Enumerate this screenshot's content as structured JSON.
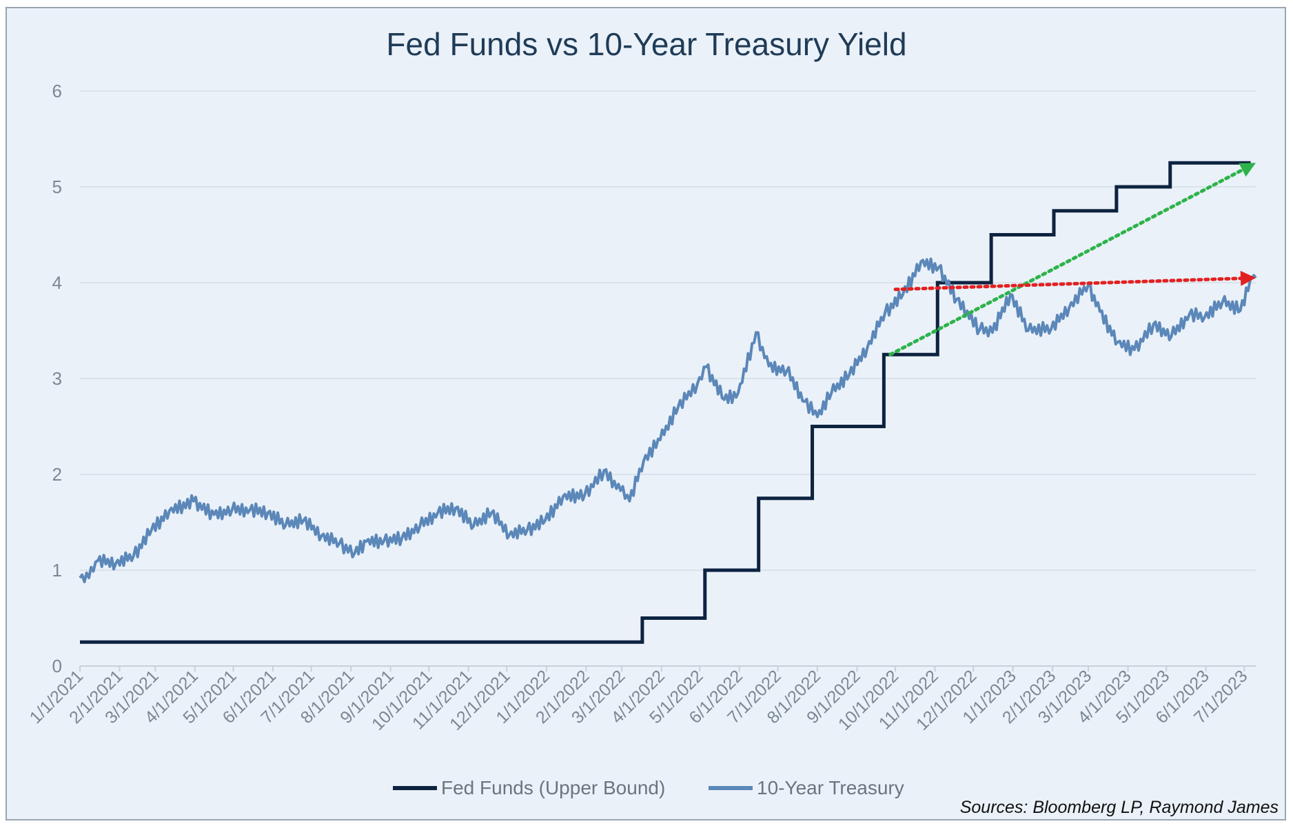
{
  "chart_data": {
    "type": "line",
    "title": "Fed Funds vs 10-Year Treasury Yield",
    "xlabel": "",
    "ylabel": "",
    "ylim": [
      0,
      6
    ],
    "yticks": [
      "0",
      "1",
      "2",
      "3",
      "4",
      "5",
      "6"
    ],
    "xticks": [
      "1/1/2021",
      "2/1/2021",
      "3/1/2021",
      "4/1/2021",
      "5/1/2021",
      "6/1/2021",
      "7/1/2021",
      "8/1/2021",
      "9/1/2021",
      "10/1/2021",
      "11/1/2021",
      "12/1/2021",
      "1/1/2022",
      "2/1/2022",
      "3/1/2022",
      "4/1/2022",
      "5/1/2022",
      "6/1/2022",
      "7/1/2022",
      "8/1/2022",
      "9/1/2022",
      "10/1/2022",
      "11/1/2022",
      "12/1/2022",
      "1/1/2023",
      "2/1/2023",
      "3/1/2023",
      "4/1/2023",
      "5/1/2023",
      "6/1/2023",
      "7/1/2023"
    ],
    "grid": true,
    "legend_position": "bottom",
    "series": [
      {
        "name": "Fed Funds (Upper Bound)",
        "color": "#0e2340",
        "style": "step",
        "x": [
          "2021-01-01",
          "2022-03-17",
          "2022-05-05",
          "2022-06-16",
          "2022-07-28",
          "2022-09-22",
          "2022-11-03",
          "2022-12-15",
          "2023-02-02",
          "2023-03-23",
          "2023-05-04",
          "2023-07-06"
        ],
        "values": [
          0.25,
          0.5,
          1.0,
          1.75,
          2.5,
          3.25,
          4.0,
          4.5,
          4.75,
          5.0,
          5.25,
          5.25
        ]
      },
      {
        "name": "10-Year Treasury",
        "color": "#5b87b9",
        "style": "line",
        "x": [
          "2021-01-01",
          "2021-01-08",
          "2021-01-15",
          "2021-01-29",
          "2021-02-12",
          "2021-02-26",
          "2021-03-12",
          "2021-03-31",
          "2021-04-16",
          "2021-04-30",
          "2021-05-14",
          "2021-05-28",
          "2021-06-11",
          "2021-06-25",
          "2021-07-09",
          "2021-07-23",
          "2021-08-04",
          "2021-08-13",
          "2021-08-27",
          "2021-09-10",
          "2021-09-24",
          "2021-10-08",
          "2021-10-22",
          "2021-11-05",
          "2021-11-19",
          "2021-12-03",
          "2021-12-17",
          "2021-12-31",
          "2022-01-14",
          "2022-01-31",
          "2022-02-15",
          "2022-02-28",
          "2022-03-07",
          "2022-03-18",
          "2022-03-31",
          "2022-04-14",
          "2022-04-29",
          "2022-05-06",
          "2022-05-20",
          "2022-05-31",
          "2022-06-14",
          "2022-06-24",
          "2022-07-08",
          "2022-07-22",
          "2022-08-01",
          "2022-08-12",
          "2022-08-26",
          "2022-09-09",
          "2022-09-23",
          "2022-10-07",
          "2022-10-21",
          "2022-11-04",
          "2022-11-18",
          "2022-12-06",
          "2022-12-16",
          "2022-12-30",
          "2023-01-13",
          "2023-01-31",
          "2023-02-14",
          "2023-03-01",
          "2023-03-10",
          "2023-03-24",
          "2023-04-06",
          "2023-04-21",
          "2023-05-05",
          "2023-05-19",
          "2023-05-31",
          "2023-06-14",
          "2023-06-28",
          "2023-07-07",
          "2023-07-10"
        ],
        "values": [
          0.92,
          0.92,
          1.1,
          1.07,
          1.15,
          1.42,
          1.62,
          1.72,
          1.58,
          1.63,
          1.63,
          1.6,
          1.47,
          1.52,
          1.36,
          1.28,
          1.18,
          1.3,
          1.31,
          1.34,
          1.46,
          1.6,
          1.65,
          1.46,
          1.6,
          1.37,
          1.42,
          1.52,
          1.77,
          1.79,
          2.04,
          1.83,
          1.72,
          2.14,
          2.36,
          2.7,
          2.94,
          3.12,
          2.78,
          2.85,
          3.48,
          3.13,
          3.08,
          2.76,
          2.6,
          2.85,
          3.04,
          3.32,
          3.69,
          3.88,
          4.22,
          4.16,
          3.83,
          3.51,
          3.48,
          3.88,
          3.5,
          3.52,
          3.74,
          3.98,
          3.7,
          3.38,
          3.3,
          3.57,
          3.44,
          3.67,
          3.64,
          3.8,
          3.71,
          4.05,
          4.05
        ]
      }
    ],
    "annotations": [
      {
        "type": "arrow",
        "style": "dotted",
        "color": "#2db34a",
        "from": {
          "x": "2022-09-27",
          "y": 3.25
        },
        "to": {
          "x": "2023-07-10",
          "y": 5.25
        }
      },
      {
        "type": "arrow",
        "style": "dotted",
        "color": "#e32020",
        "from": {
          "x": "2022-10-01",
          "y": 3.93
        },
        "to": {
          "x": "2023-07-10",
          "y": 4.05
        }
      }
    ],
    "source": "Sources: Bloomberg LP, Raymond James"
  }
}
